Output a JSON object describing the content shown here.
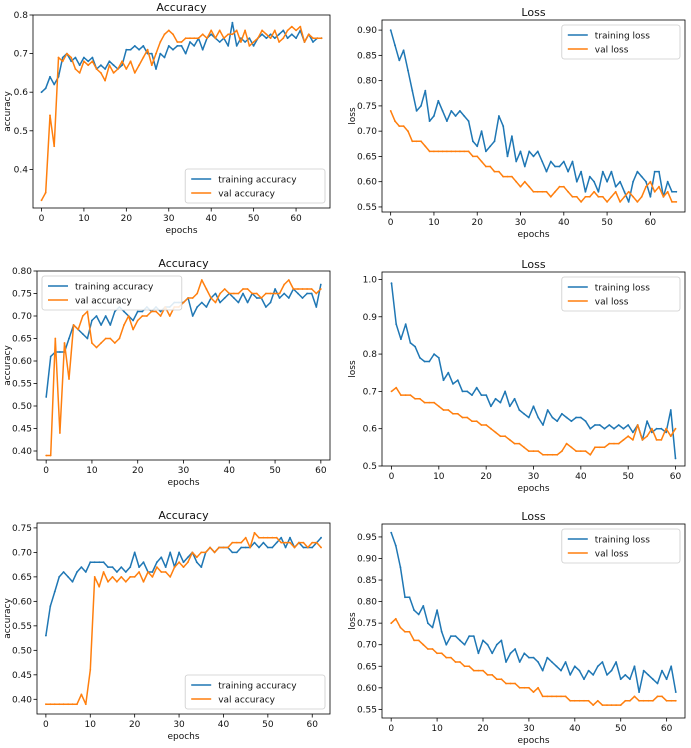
{
  "colors": {
    "training": "#1f77b4",
    "val": "#ff7f0e"
  },
  "chart_data": [
    {
      "type": "line",
      "title": "Accuracy",
      "xlabel": "epochs",
      "ylabel": "accuracy",
      "xlim": [
        -2,
        68
      ],
      "ylim": [
        0.3,
        0.8
      ],
      "xticks": [
        0,
        10,
        20,
        30,
        40,
        50,
        60
      ],
      "yticks": [
        0.4,
        0.5,
        0.6,
        0.7,
        0.8
      ],
      "ytick_labels": [
        "0.4",
        "0.5",
        "0.6",
        "0.7",
        "0.8"
      ],
      "legend_position": "lower-right",
      "series": [
        {
          "name": "training accuracy",
          "values": [
            0.6,
            0.61,
            0.64,
            0.62,
            0.64,
            0.69,
            0.7,
            0.68,
            0.69,
            0.67,
            0.69,
            0.68,
            0.69,
            0.66,
            0.67,
            0.66,
            0.68,
            0.67,
            0.66,
            0.67,
            0.71,
            0.71,
            0.72,
            0.71,
            0.72,
            0.7,
            0.7,
            0.66,
            0.7,
            0.69,
            0.72,
            0.71,
            0.72,
            0.72,
            0.7,
            0.73,
            0.72,
            0.74,
            0.71,
            0.74,
            0.75,
            0.74,
            0.73,
            0.74,
            0.72,
            0.78,
            0.72,
            0.74,
            0.73,
            0.74,
            0.72,
            0.74,
            0.75,
            0.74,
            0.75,
            0.74,
            0.75,
            0.76,
            0.74,
            0.75,
            0.74,
            0.76,
            0.73,
            0.75,
            0.73,
            0.74,
            0.74
          ]
        },
        {
          "name": "val accuracy",
          "values": [
            0.32,
            0.34,
            0.54,
            0.46,
            0.69,
            0.68,
            0.7,
            0.69,
            0.66,
            0.65,
            0.68,
            0.67,
            0.68,
            0.66,
            0.65,
            0.63,
            0.67,
            0.65,
            0.66,
            0.68,
            0.66,
            0.68,
            0.65,
            0.67,
            0.69,
            0.71,
            0.67,
            0.7,
            0.73,
            0.75,
            0.76,
            0.75,
            0.73,
            0.73,
            0.74,
            0.74,
            0.74,
            0.74,
            0.75,
            0.74,
            0.76,
            0.74,
            0.76,
            0.74,
            0.75,
            0.75,
            0.76,
            0.73,
            0.76,
            0.72,
            0.73,
            0.74,
            0.76,
            0.75,
            0.74,
            0.76,
            0.73,
            0.74,
            0.76,
            0.77,
            0.76,
            0.77,
            0.73,
            0.75,
            0.74,
            0.74,
            0.74
          ]
        }
      ]
    },
    {
      "type": "line",
      "title": "Loss",
      "xlabel": "epochs",
      "ylabel": "loss",
      "xlim": [
        -2,
        68
      ],
      "ylim": [
        0.54,
        0.92
      ],
      "xticks": [
        0,
        10,
        20,
        30,
        40,
        50,
        60
      ],
      "yticks": [
        0.55,
        0.6,
        0.65,
        0.7,
        0.75,
        0.8,
        0.85,
        0.9
      ],
      "ytick_labels": [
        "0.55",
        "0.60",
        "0.65",
        "0.70",
        "0.75",
        "0.80",
        "0.85",
        "0.90"
      ],
      "legend_position": "upper-right",
      "series": [
        {
          "name": "training loss",
          "values": [
            0.9,
            0.87,
            0.84,
            0.86,
            0.82,
            0.78,
            0.74,
            0.75,
            0.78,
            0.72,
            0.73,
            0.76,
            0.74,
            0.72,
            0.74,
            0.73,
            0.74,
            0.73,
            0.72,
            0.68,
            0.67,
            0.7,
            0.66,
            0.67,
            0.68,
            0.73,
            0.71,
            0.65,
            0.69,
            0.64,
            0.66,
            0.63,
            0.66,
            0.65,
            0.66,
            0.64,
            0.62,
            0.64,
            0.63,
            0.63,
            0.64,
            0.62,
            0.64,
            0.6,
            0.62,
            0.58,
            0.61,
            0.6,
            0.58,
            0.62,
            0.6,
            0.62,
            0.59,
            0.6,
            0.58,
            0.56,
            0.6,
            0.62,
            0.61,
            0.6,
            0.57,
            0.62,
            0.62,
            0.57,
            0.6,
            0.58,
            0.58
          ]
        },
        {
          "name": "val loss",
          "values": [
            0.74,
            0.72,
            0.71,
            0.71,
            0.7,
            0.68,
            0.68,
            0.68,
            0.67,
            0.66,
            0.66,
            0.66,
            0.66,
            0.66,
            0.66,
            0.66,
            0.66,
            0.66,
            0.66,
            0.65,
            0.65,
            0.64,
            0.63,
            0.63,
            0.62,
            0.62,
            0.61,
            0.61,
            0.61,
            0.6,
            0.59,
            0.6,
            0.59,
            0.58,
            0.58,
            0.58,
            0.58,
            0.57,
            0.58,
            0.59,
            0.59,
            0.58,
            0.57,
            0.57,
            0.56,
            0.57,
            0.57,
            0.58,
            0.57,
            0.57,
            0.56,
            0.57,
            0.58,
            0.56,
            0.57,
            0.58,
            0.57,
            0.56,
            0.57,
            0.59,
            0.6,
            0.58,
            0.59,
            0.57,
            0.58,
            0.56,
            0.56
          ]
        }
      ]
    },
    {
      "type": "line",
      "title": "Accuracy",
      "xlabel": "epochs",
      "ylabel": "accuracy",
      "xlim": [
        -2,
        62
      ],
      "ylim": [
        0.38,
        0.8
      ],
      "xticks": [
        0,
        10,
        20,
        30,
        40,
        50,
        60
      ],
      "yticks": [
        0.4,
        0.45,
        0.5,
        0.55,
        0.6,
        0.65,
        0.7,
        0.75,
        0.8
      ],
      "ytick_labels": [
        "0.40",
        "0.45",
        "0.50",
        "0.55",
        "0.60",
        "0.65",
        "0.70",
        "0.75",
        "0.80"
      ],
      "legend_position": "upper-left",
      "series": [
        {
          "name": "training accuracy",
          "values": [
            0.52,
            0.61,
            0.62,
            0.62,
            0.62,
            0.65,
            0.68,
            0.67,
            0.66,
            0.65,
            0.69,
            0.7,
            0.68,
            0.7,
            0.68,
            0.71,
            0.72,
            0.71,
            0.7,
            0.69,
            0.71,
            0.71,
            0.72,
            0.71,
            0.72,
            0.71,
            0.72,
            0.72,
            0.73,
            0.73,
            0.73,
            0.74,
            0.7,
            0.72,
            0.73,
            0.72,
            0.74,
            0.75,
            0.73,
            0.74,
            0.75,
            0.74,
            0.73,
            0.75,
            0.73,
            0.75,
            0.74,
            0.74,
            0.72,
            0.73,
            0.76,
            0.74,
            0.75,
            0.74,
            0.76,
            0.75,
            0.74,
            0.75,
            0.75,
            0.72,
            0.77
          ]
        },
        {
          "name": "val accuracy",
          "values": [
            0.39,
            0.39,
            0.65,
            0.44,
            0.64,
            0.56,
            0.68,
            0.67,
            0.7,
            0.71,
            0.64,
            0.63,
            0.64,
            0.65,
            0.65,
            0.64,
            0.65,
            0.68,
            0.7,
            0.67,
            0.69,
            0.7,
            0.7,
            0.71,
            0.71,
            0.7,
            0.72,
            0.7,
            0.72,
            0.72,
            0.73,
            0.74,
            0.74,
            0.75,
            0.78,
            0.76,
            0.74,
            0.73,
            0.75,
            0.76,
            0.75,
            0.75,
            0.75,
            0.76,
            0.76,
            0.75,
            0.75,
            0.74,
            0.75,
            0.75,
            0.75,
            0.75,
            0.77,
            0.78,
            0.76,
            0.76,
            0.76,
            0.76,
            0.76,
            0.75,
            0.76
          ]
        }
      ]
    },
    {
      "type": "line",
      "title": "Loss",
      "xlabel": "epochs",
      "ylabel": "loss",
      "xlim": [
        -2,
        62
      ],
      "ylim": [
        0.5,
        1.02
      ],
      "xticks": [
        0,
        10,
        20,
        30,
        40,
        50,
        60
      ],
      "yticks": [
        0.5,
        0.6,
        0.7,
        0.8,
        0.9,
        1.0
      ],
      "ytick_labels": [
        "0.5",
        "0.6",
        "0.7",
        "0.8",
        "0.9",
        "1.0"
      ],
      "legend_position": "upper-right",
      "series": [
        {
          "name": "training loss",
          "values": [
            0.99,
            0.88,
            0.84,
            0.88,
            0.83,
            0.82,
            0.79,
            0.78,
            0.78,
            0.8,
            0.79,
            0.73,
            0.75,
            0.72,
            0.73,
            0.7,
            0.7,
            0.69,
            0.71,
            0.69,
            0.69,
            0.66,
            0.68,
            0.67,
            0.7,
            0.66,
            0.68,
            0.65,
            0.64,
            0.63,
            0.66,
            0.63,
            0.61,
            0.65,
            0.63,
            0.62,
            0.64,
            0.63,
            0.62,
            0.63,
            0.63,
            0.62,
            0.6,
            0.61,
            0.61,
            0.6,
            0.61,
            0.6,
            0.61,
            0.6,
            0.61,
            0.59,
            0.61,
            0.57,
            0.62,
            0.59,
            0.6,
            0.6,
            0.59,
            0.65,
            0.52
          ]
        },
        {
          "name": "val loss",
          "values": [
            0.7,
            0.71,
            0.69,
            0.69,
            0.69,
            0.68,
            0.68,
            0.67,
            0.67,
            0.67,
            0.66,
            0.65,
            0.65,
            0.64,
            0.64,
            0.63,
            0.63,
            0.62,
            0.62,
            0.61,
            0.61,
            0.6,
            0.59,
            0.58,
            0.58,
            0.57,
            0.56,
            0.56,
            0.55,
            0.54,
            0.54,
            0.54,
            0.53,
            0.53,
            0.53,
            0.53,
            0.54,
            0.56,
            0.55,
            0.54,
            0.54,
            0.54,
            0.53,
            0.55,
            0.55,
            0.55,
            0.56,
            0.56,
            0.56,
            0.57,
            0.58,
            0.57,
            0.61,
            0.57,
            0.58,
            0.6,
            0.57,
            0.57,
            0.6,
            0.58,
            0.6
          ]
        }
      ]
    },
    {
      "type": "line",
      "title": "Accuracy",
      "xlabel": "epochs",
      "ylabel": "accuracy",
      "xlim": [
        -2,
        64
      ],
      "ylim": [
        0.37,
        0.76
      ],
      "xticks": [
        0,
        10,
        20,
        30,
        40,
        50,
        60
      ],
      "yticks": [
        0.4,
        0.45,
        0.5,
        0.55,
        0.6,
        0.65,
        0.7,
        0.75
      ],
      "ytick_labels": [
        "0.40",
        "0.45",
        "0.50",
        "0.55",
        "0.60",
        "0.65",
        "0.70",
        "0.75"
      ],
      "legend_position": "lower-right",
      "series": [
        {
          "name": "training accuracy",
          "values": [
            0.53,
            0.59,
            0.62,
            0.65,
            0.66,
            0.65,
            0.64,
            0.66,
            0.67,
            0.66,
            0.68,
            0.68,
            0.68,
            0.68,
            0.67,
            0.67,
            0.66,
            0.67,
            0.66,
            0.67,
            0.7,
            0.67,
            0.68,
            0.66,
            0.66,
            0.68,
            0.69,
            0.67,
            0.7,
            0.67,
            0.7,
            0.68,
            0.69,
            0.7,
            0.68,
            0.67,
            0.7,
            0.71,
            0.7,
            0.71,
            0.71,
            0.71,
            0.7,
            0.7,
            0.71,
            0.71,
            0.71,
            0.72,
            0.71,
            0.72,
            0.71,
            0.71,
            0.72,
            0.73,
            0.71,
            0.73,
            0.71,
            0.72,
            0.71,
            0.71,
            0.71,
            0.72,
            0.73
          ]
        },
        {
          "name": "val accuracy",
          "values": [
            0.39,
            0.39,
            0.39,
            0.39,
            0.39,
            0.39,
            0.39,
            0.39,
            0.41,
            0.39,
            0.46,
            0.65,
            0.63,
            0.66,
            0.64,
            0.65,
            0.64,
            0.65,
            0.64,
            0.65,
            0.65,
            0.66,
            0.64,
            0.66,
            0.65,
            0.67,
            0.66,
            0.66,
            0.65,
            0.67,
            0.68,
            0.67,
            0.68,
            0.7,
            0.69,
            0.7,
            0.7,
            0.71,
            0.7,
            0.71,
            0.71,
            0.71,
            0.72,
            0.72,
            0.72,
            0.73,
            0.71,
            0.74,
            0.73,
            0.73,
            0.73,
            0.73,
            0.73,
            0.72,
            0.72,
            0.72,
            0.71,
            0.72,
            0.72,
            0.71,
            0.72,
            0.72,
            0.71
          ]
        }
      ]
    },
    {
      "type": "line",
      "title": "Loss",
      "xlabel": "epochs",
      "ylabel": "loss",
      "xlim": [
        -2,
        64
      ],
      "ylim": [
        0.53,
        0.98
      ],
      "xticks": [
        0,
        10,
        20,
        30,
        40,
        50,
        60
      ],
      "yticks": [
        0.55,
        0.6,
        0.65,
        0.7,
        0.75,
        0.8,
        0.85,
        0.9,
        0.95
      ],
      "ytick_labels": [
        "0.55",
        "0.60",
        "0.65",
        "0.70",
        "0.75",
        "0.80",
        "0.85",
        "0.90",
        "0.95"
      ],
      "legend_position": "upper-right",
      "series": [
        {
          "name": "training loss",
          "values": [
            0.96,
            0.93,
            0.88,
            0.81,
            0.81,
            0.78,
            0.77,
            0.79,
            0.75,
            0.74,
            0.78,
            0.73,
            0.7,
            0.72,
            0.72,
            0.71,
            0.7,
            0.72,
            0.72,
            0.68,
            0.71,
            0.7,
            0.68,
            0.7,
            0.71,
            0.66,
            0.68,
            0.69,
            0.66,
            0.68,
            0.67,
            0.67,
            0.66,
            0.64,
            0.67,
            0.66,
            0.65,
            0.64,
            0.66,
            0.63,
            0.65,
            0.64,
            0.62,
            0.64,
            0.63,
            0.65,
            0.66,
            0.63,
            0.64,
            0.66,
            0.62,
            0.63,
            0.62,
            0.65,
            0.59,
            0.64,
            0.63,
            0.62,
            0.61,
            0.64,
            0.62,
            0.65,
            0.59
          ]
        },
        {
          "name": "val loss",
          "values": [
            0.75,
            0.76,
            0.74,
            0.73,
            0.73,
            0.71,
            0.71,
            0.7,
            0.69,
            0.69,
            0.68,
            0.68,
            0.67,
            0.67,
            0.66,
            0.66,
            0.65,
            0.65,
            0.64,
            0.64,
            0.64,
            0.63,
            0.63,
            0.62,
            0.62,
            0.61,
            0.61,
            0.61,
            0.6,
            0.6,
            0.6,
            0.59,
            0.6,
            0.58,
            0.58,
            0.58,
            0.58,
            0.58,
            0.58,
            0.57,
            0.57,
            0.57,
            0.57,
            0.57,
            0.56,
            0.57,
            0.56,
            0.56,
            0.56,
            0.56,
            0.56,
            0.57,
            0.57,
            0.58,
            0.57,
            0.57,
            0.57,
            0.57,
            0.58,
            0.58,
            0.57,
            0.57,
            0.57
          ]
        }
      ]
    }
  ]
}
